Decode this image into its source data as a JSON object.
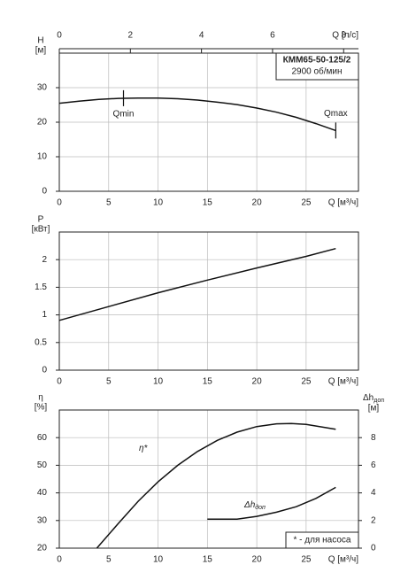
{
  "chart_data": [
    {
      "type": "line",
      "title": "КММ65-50-125/2",
      "subtitle": "2900 об/мин",
      "xlabel": "Q [м³/ч]",
      "x2label": "Q [л/с]",
      "ylabel": "Н",
      "yunit": "[м]",
      "xlim": [
        0,
        30.3
      ],
      "xticks": [
        0,
        5,
        10,
        15,
        20,
        25
      ],
      "x2lim": [
        0,
        8.417
      ],
      "x2ticks": [
        0,
        2,
        4,
        6,
        8
      ],
      "ylim": [
        0,
        40
      ],
      "yticks": [
        0,
        10,
        20,
        30
      ],
      "grid": true,
      "series": [
        {
          "color": "#111111",
          "x": [
            0,
            2,
            4,
            6,
            8,
            10,
            12,
            14,
            16,
            18,
            20,
            22,
            24,
            26,
            28
          ],
          "values": [
            25.5,
            26.1,
            26.6,
            26.9,
            27,
            27,
            26.8,
            26.4,
            25.8,
            25.1,
            24.1,
            22.9,
            21.4,
            19.6,
            17.6
          ]
        }
      ],
      "markers": [
        {
          "label": "Qmin",
          "x": 6.5,
          "y": 26.95
        },
        {
          "label": "Qmax",
          "x": 28,
          "y": 17.6
        }
      ]
    },
    {
      "type": "line",
      "xlabel": "Q [м³/ч]",
      "ylabel": "P",
      "yunit": "[кВт]",
      "xlim": [
        0,
        30.3
      ],
      "xticks": [
        0,
        5,
        10,
        15,
        20,
        25
      ],
      "ylim": [
        0,
        2.5
      ],
      "yticks": [
        0,
        0.5,
        1,
        1.5,
        2
      ],
      "grid": true,
      "series": [
        {
          "color": "#111111",
          "x": [
            0,
            5,
            10,
            15,
            20,
            25,
            28
          ],
          "values": [
            0.9,
            1.15,
            1.4,
            1.63,
            1.85,
            2.06,
            2.2
          ]
        }
      ]
    },
    {
      "type": "line",
      "xlabel": "Q [м³/ч]",
      "ylabel": "η",
      "yunit": "[%]",
      "y2label": "Δh",
      "y2label_sub": "доп",
      "y2unit": "[м]",
      "xlim": [
        0,
        30.3
      ],
      "xticks": [
        0,
        5,
        10,
        15,
        20,
        25
      ],
      "ylim": [
        20,
        70
      ],
      "yticks": [
        20,
        30,
        40,
        50,
        60
      ],
      "y2lim": [
        0,
        10
      ],
      "y2ticks": [
        0,
        2,
        4,
        6,
        8
      ],
      "grid": true,
      "series": [
        {
          "name": "η*",
          "color": "#111111",
          "x": [
            3.8,
            6,
            8,
            10,
            12,
            14,
            16,
            18,
            20,
            22,
            23.5,
            25,
            28
          ],
          "values": [
            20,
            29,
            37,
            44,
            50,
            55,
            59,
            62,
            64,
            65,
            65.1,
            64.8,
            63
          ]
        },
        {
          "name": "Δh",
          "name_sub": "доп",
          "axis": "y2",
          "color": "#111111",
          "x": [
            15,
            18,
            20,
            22,
            24,
            26,
            28
          ],
          "values": [
            2.1,
            2.1,
            2.3,
            2.6,
            3,
            3.6,
            4.4
          ]
        }
      ],
      "note": "* - для насоса"
    }
  ]
}
